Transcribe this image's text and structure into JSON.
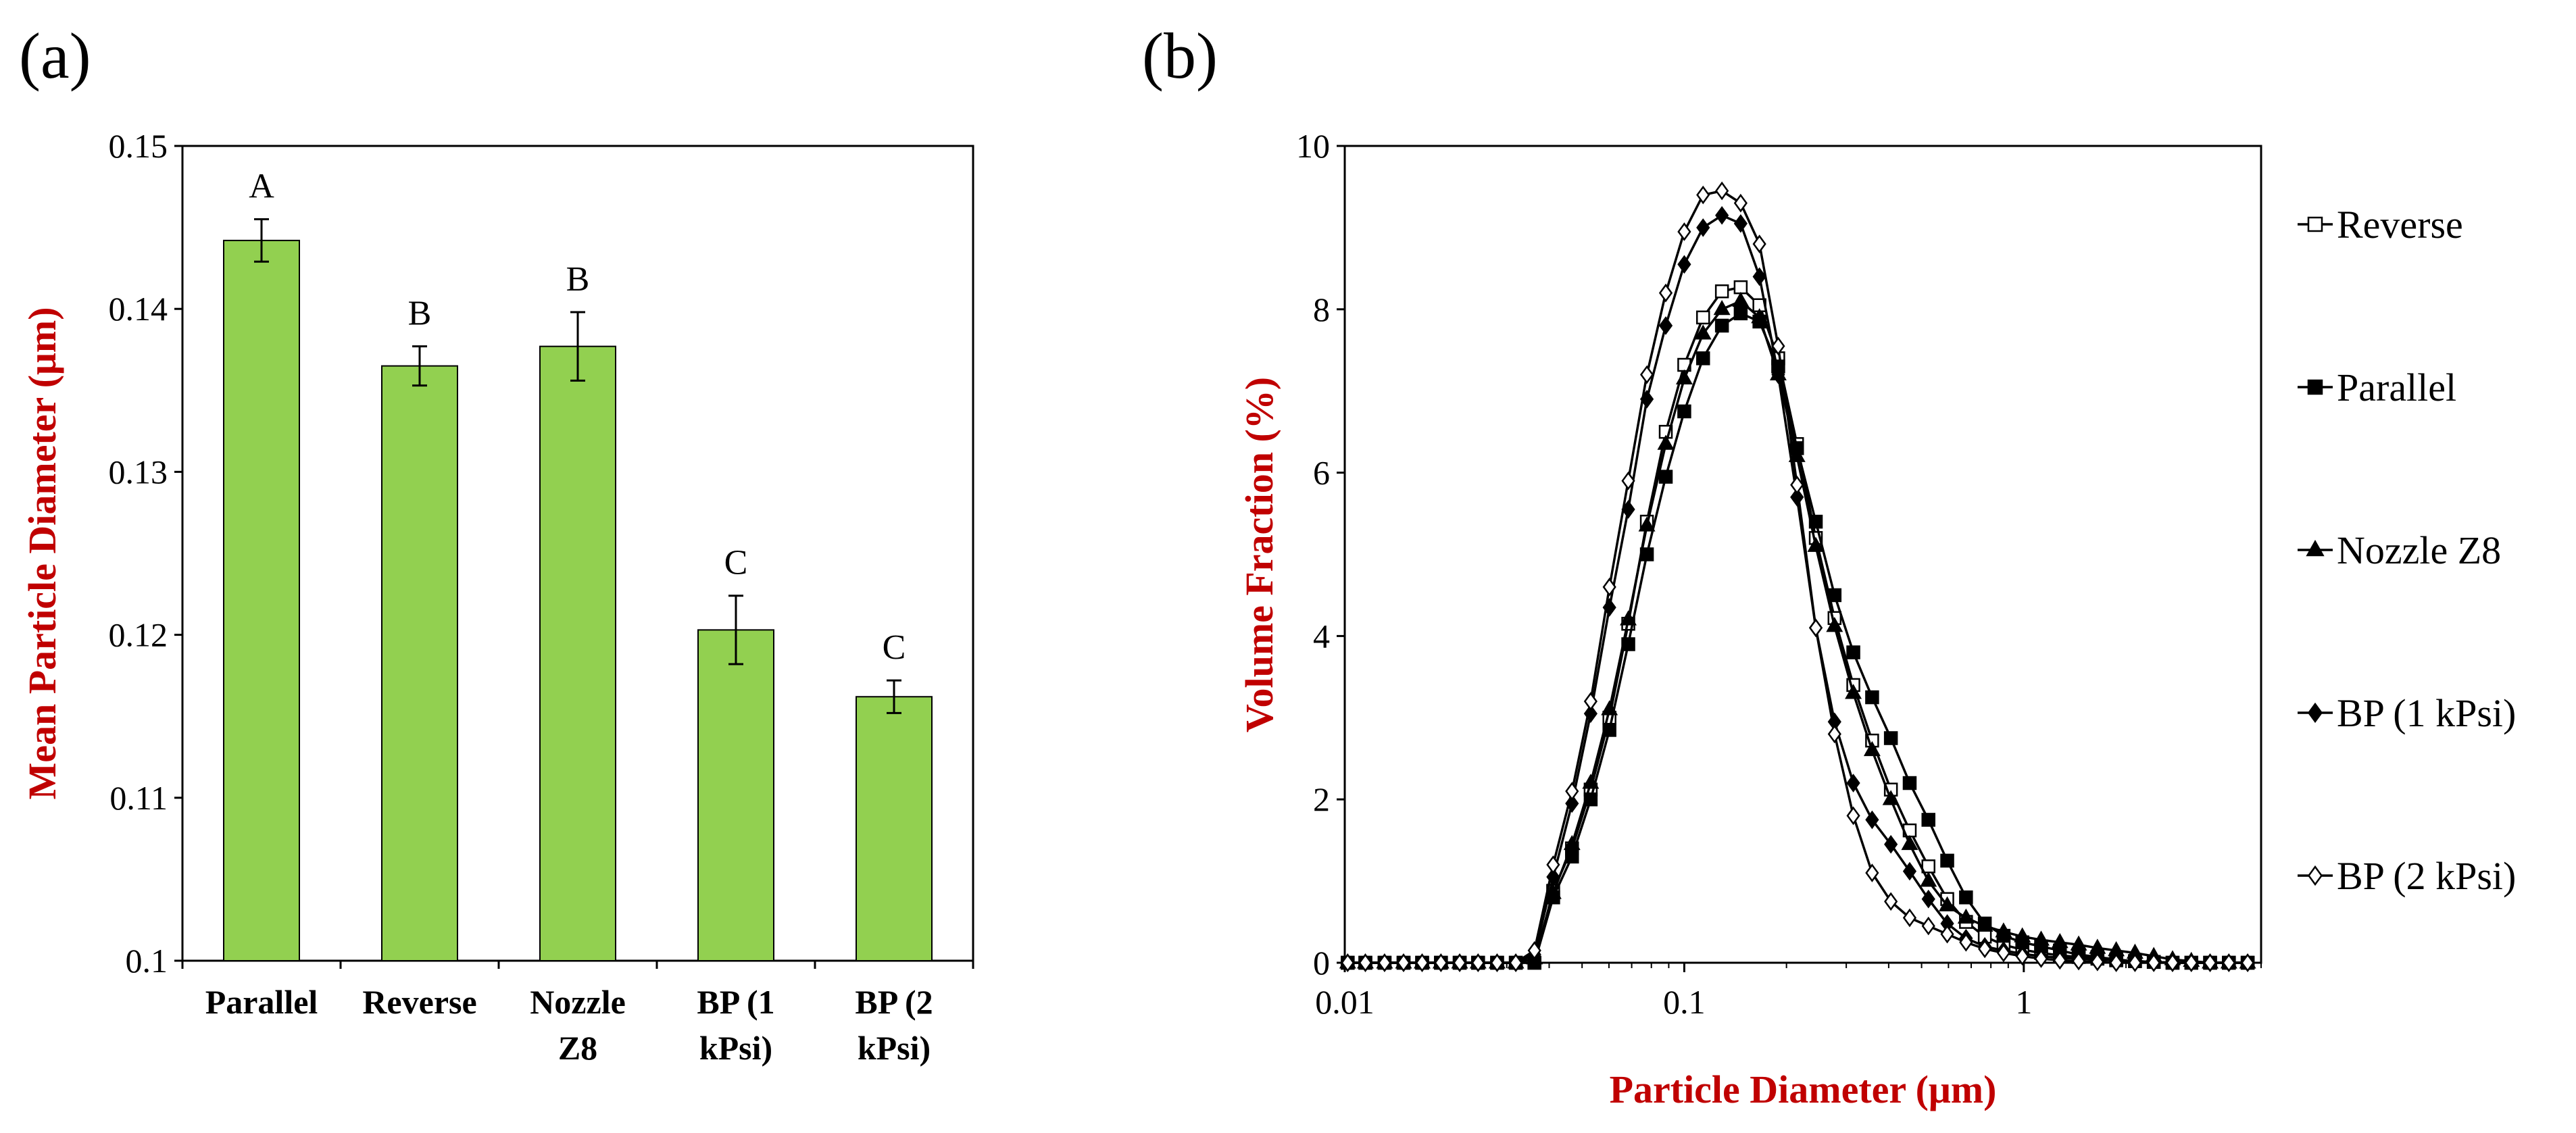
{
  "chart_data": [
    {
      "panel": "(a)",
      "type": "bar",
      "title": "",
      "xlabel": "",
      "ylabel": "Mean Particle Diameter (μm)",
      "ylim": [
        0.1,
        0.15
      ],
      "yticks": [
        "0.1",
        "0.11",
        "0.12",
        "0.13",
        "0.14",
        "0.15"
      ],
      "ytick_values": [
        0.1,
        0.11,
        0.12,
        0.13,
        0.14,
        0.15
      ],
      "categories": [
        {
          "line1": "Parallel",
          "line2": ""
        },
        {
          "line1": "Reverse",
          "line2": ""
        },
        {
          "line1": "Nozzle",
          "line2": "Z8"
        },
        {
          "line1": "BP (1",
          "line2": "kPsi)"
        },
        {
          "line1": "BP (2",
          "line2": "kPsi)"
        }
      ],
      "values": [
        0.1442,
        0.1365,
        0.1377,
        0.1203,
        0.1162
      ],
      "errors": [
        0.0013,
        0.0012,
        0.0021,
        0.0021,
        0.001
      ],
      "significance": [
        "A",
        "B",
        "B",
        "C",
        "C"
      ],
      "bar_color": "#92d050"
    },
    {
      "panel": "(b)",
      "type": "line",
      "title": "",
      "xlabel": "Particle Diameter (μm)",
      "ylabel": "Volume Fraction (%)",
      "xscale": "log",
      "xlim": [
        0.01,
        5
      ],
      "ylim": [
        0,
        10
      ],
      "xticks": [
        "0.01",
        "0.1",
        "1"
      ],
      "xtick_values": [
        0.01,
        0.1,
        1
      ],
      "yticks": [
        "0",
        "2",
        "4",
        "6",
        "8",
        "10"
      ],
      "ytick_values": [
        0,
        2,
        4,
        6,
        8,
        10
      ],
      "legend_position": "right",
      "x": [
        0.0102,
        0.0115,
        0.0131,
        0.0149,
        0.0169,
        0.0192,
        0.0218,
        0.0247,
        0.0281,
        0.0319,
        0.0362,
        0.0411,
        0.0467,
        0.053,
        0.0602,
        0.0684,
        0.0776,
        0.0882,
        0.1,
        0.1136,
        0.1291,
        0.1466,
        0.1665,
        0.1891,
        0.2148,
        0.244,
        0.2771,
        0.3147,
        0.3575,
        0.406,
        0.4612,
        0.5238,
        0.595,
        0.6758,
        0.7676,
        0.8718,
        0.9902,
        1.1247,
        1.2774,
        1.4509,
        1.6479,
        1.8717,
        2.1259,
        2.4146,
        2.7425,
        3.115,
        3.538,
        4.0185,
        4.5642
      ],
      "series": [
        {
          "name": "Reverse",
          "marker": "open-square",
          "values": [
            0,
            0,
            0,
            0,
            0,
            0,
            0,
            0,
            0,
            0,
            0,
            0.88,
            1.4,
            2.12,
            3.0,
            4.15,
            5.4,
            6.5,
            7.32,
            7.9,
            8.22,
            8.27,
            8.05,
            7.4,
            6.35,
            5.2,
            4.22,
            3.4,
            2.72,
            2.12,
            1.62,
            1.18,
            0.78,
            0.5,
            0.32,
            0.22,
            0.16,
            0.12,
            0.09,
            0.07,
            0.05,
            0.03,
            0.02,
            0.01,
            0,
            0,
            0,
            0,
            0
          ]
        },
        {
          "name": "Parallel",
          "marker": "filled-square",
          "values": [
            0,
            0,
            0,
            0,
            0,
            0,
            0,
            0,
            0,
            0,
            0,
            0.8,
            1.3,
            2.0,
            2.85,
            3.9,
            5.0,
            5.95,
            6.75,
            7.4,
            7.8,
            7.95,
            7.85,
            7.3,
            6.3,
            5.4,
            4.5,
            3.8,
            3.25,
            2.75,
            2.2,
            1.75,
            1.25,
            0.8,
            0.48,
            0.33,
            0.25,
            0.2,
            0.15,
            0.1,
            0.07,
            0.04,
            0.02,
            0.01,
            0,
            0,
            0,
            0,
            0
          ]
        },
        {
          "name": "Nozzle Z8",
          "marker": "filled-triangle",
          "values": [
            0,
            0,
            0,
            0,
            0,
            0,
            0,
            0,
            0,
            0,
            0.05,
            0.85,
            1.45,
            2.2,
            3.1,
            4.2,
            5.35,
            6.35,
            7.15,
            7.7,
            8.0,
            8.1,
            7.9,
            7.2,
            6.2,
            5.1,
            4.12,
            3.3,
            2.6,
            2.0,
            1.45,
            1.0,
            0.7,
            0.55,
            0.45,
            0.38,
            0.32,
            0.28,
            0.25,
            0.22,
            0.18,
            0.15,
            0.12,
            0.08,
            0.04,
            0.02,
            0,
            0,
            0
          ]
        },
        {
          "name": "BP (1 kPsi)",
          "marker": "filled-diamond",
          "values": [
            0,
            0,
            0,
            0,
            0,
            0,
            0,
            0,
            0,
            0,
            0.1,
            1.05,
            1.95,
            3.05,
            4.35,
            5.55,
            6.9,
            7.8,
            8.55,
            9.0,
            9.15,
            9.05,
            8.4,
            7.2,
            5.7,
            4.1,
            2.95,
            2.2,
            1.75,
            1.45,
            1.12,
            0.78,
            0.48,
            0.3,
            0.2,
            0.15,
            0.11,
            0.08,
            0.06,
            0.05,
            0.04,
            0.03,
            0.02,
            0.01,
            0,
            0,
            0,
            0,
            0
          ]
        },
        {
          "name": "BP (2 kPsi)",
          "marker": "open-diamond",
          "values": [
            0,
            0,
            0,
            0,
            0,
            0,
            0,
            0,
            0,
            0,
            0.15,
            1.2,
            2.1,
            3.2,
            4.6,
            5.9,
            7.2,
            8.2,
            8.95,
            9.4,
            9.45,
            9.3,
            8.8,
            7.55,
            5.85,
            4.1,
            2.8,
            1.8,
            1.1,
            0.75,
            0.55,
            0.45,
            0.35,
            0.25,
            0.17,
            0.12,
            0.08,
            0.05,
            0.03,
            0.02,
            0.01,
            0,
            0,
            0,
            0,
            0,
            0,
            0,
            0
          ]
        }
      ]
    }
  ]
}
